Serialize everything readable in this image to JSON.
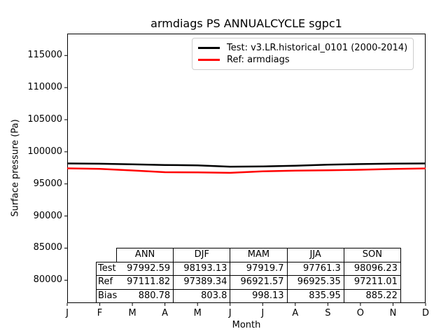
{
  "title": "armdiags PS ANNUALCYCLE sgpc1",
  "axes": {
    "ylabel": "Surface pressure (Pa)",
    "xlabel": "Month",
    "y_ticks": [
      80000,
      85000,
      90000,
      95000,
      100000,
      105000,
      110000,
      115000
    ],
    "x_tick_labels": [
      "J",
      "F",
      "M",
      "A",
      "M",
      "J",
      "J",
      "A",
      "S",
      "O",
      "N",
      "D"
    ],
    "ylim": [
      76435,
      118411
    ]
  },
  "legend": {
    "entries": [
      {
        "label": "Test: v3.LR.historical_0101 (2000-2014)",
        "color": "#000000"
      },
      {
        "label": "Ref: armdiags",
        "color": "#ff0000"
      }
    ]
  },
  "stats_table": {
    "column_headers": [
      "ANN",
      "DJF",
      "MAM",
      "JJA",
      "SON"
    ],
    "rows": [
      {
        "label": "Test",
        "values": [
          "97992.59",
          "98193.13",
          "97919.7",
          "97761.3",
          "98096.23"
        ]
      },
      {
        "label": "Ref",
        "values": [
          "97111.82",
          "97389.34",
          "96921.57",
          "96925.35",
          "97211.01"
        ]
      },
      {
        "label": "Bias",
        "values": [
          "880.78",
          "803.8",
          "998.13",
          "835.95",
          "885.22"
        ]
      }
    ]
  },
  "chart_data": {
    "type": "line",
    "title": "armdiags PS ANNUALCYCLE sgpc1",
    "xlabel": "Month",
    "ylabel": "Surface pressure (Pa)",
    "categories": [
      "J",
      "F",
      "M",
      "A",
      "M",
      "J",
      "J",
      "A",
      "S",
      "O",
      "N",
      "D"
    ],
    "series": [
      {
        "name": "Test: v3.LR.historical_0101 (2000-2014)",
        "color": "#000000",
        "values": [
          98190,
          98140,
          98050,
          97950,
          97890,
          97680,
          97730,
          97830,
          97990,
          98090,
          98150,
          98190
        ]
      },
      {
        "name": "Ref: armdiags",
        "color": "#ff0000",
        "values": [
          97420,
          97340,
          97100,
          96820,
          96800,
          96720,
          96950,
          97060,
          97130,
          97210,
          97330,
          97410
        ]
      }
    ],
    "seasonal_stats": {
      "columns": [
        "ANN",
        "DJF",
        "MAM",
        "JJA",
        "SON"
      ],
      "test": [
        97992.59,
        98193.13,
        97919.7,
        97761.3,
        98096.23
      ],
      "ref": [
        97111.82,
        97389.34,
        96921.57,
        96925.35,
        97211.01
      ],
      "bias": [
        880.78,
        803.8,
        998.13,
        835.95,
        885.22
      ]
    },
    "ylim": [
      76435,
      118411
    ],
    "y_ticks": [
      80000,
      85000,
      90000,
      95000,
      100000,
      105000,
      110000,
      115000
    ],
    "grid": false,
    "legend_position": "upper right"
  }
}
